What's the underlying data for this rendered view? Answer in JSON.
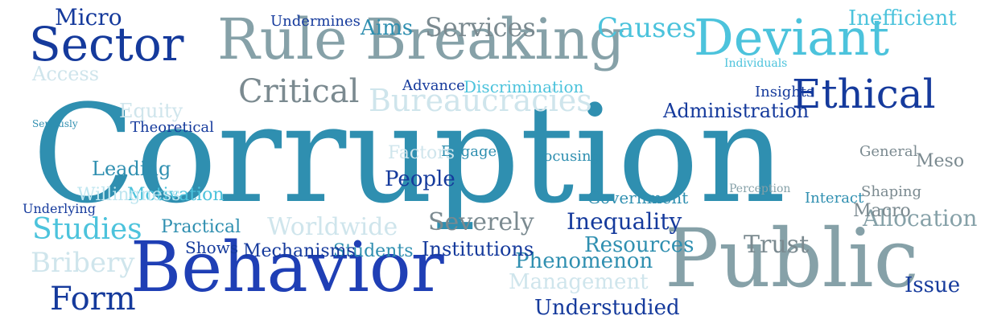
{
  "colors": {
    "background": "#ffffff",
    "palette": [
      "#2f8fb0",
      "#1f3fb5",
      "#86a1a8",
      "#4cc3dc",
      "#153a9c",
      "#cfe5ec",
      "#7b8a90",
      "#bfe6f0"
    ]
  },
  "words": [
    {
      "text": "Corruption",
      "color": "#2f8fb0",
      "tier": "xxl"
    },
    {
      "text": "Rule Breaking",
      "color": "#86a1a8",
      "tier": "xl"
    },
    {
      "text": "Behavior",
      "color": "#1f3fb5",
      "tier": "xl"
    },
    {
      "text": "Public",
      "color": "#86a1a8",
      "tier": "xl"
    },
    {
      "text": "Sector",
      "color": "#153a9c",
      "tier": "l"
    },
    {
      "text": "Deviant",
      "color": "#4cc3dc",
      "tier": "l"
    },
    {
      "text": "Ethical",
      "color": "#153a9c",
      "tier": "l"
    },
    {
      "text": "Micro",
      "color": "#153a9c",
      "tier": "m"
    },
    {
      "text": "Services",
      "color": "#7b8a90",
      "tier": "m"
    },
    {
      "text": "Causes",
      "color": "#4cc3dc",
      "tier": "m"
    },
    {
      "text": "Aims",
      "color": "#2f8fb0",
      "tier": "m"
    },
    {
      "text": "Critical",
      "color": "#7b8a90",
      "tier": "m"
    },
    {
      "text": "Bureaucracies",
      "color": "#cfe5ec",
      "tier": "m"
    },
    {
      "text": "Inefficient",
      "color": "#4cc3dc",
      "tier": "m"
    },
    {
      "text": "Administration",
      "color": "#153a9c",
      "tier": "m"
    },
    {
      "text": "Studies",
      "color": "#4cc3dc",
      "tier": "m"
    },
    {
      "text": "Bribery",
      "color": "#cfe5ec",
      "tier": "m"
    },
    {
      "text": "Worldwide",
      "color": "#cfe5ec",
      "tier": "m"
    },
    {
      "text": "Form",
      "color": "#153a9c",
      "tier": "m"
    },
    {
      "text": "Inequality",
      "color": "#153a9c",
      "tier": "m"
    },
    {
      "text": "Severely",
      "color": "#7b8a90",
      "tier": "m"
    },
    {
      "text": "Allocation",
      "color": "#86a1a8",
      "tier": "m"
    },
    {
      "text": "Trust",
      "color": "#7b8a90",
      "tier": "m"
    },
    {
      "text": "Phenomenon",
      "color": "#2f8fb0",
      "tier": "m"
    },
    {
      "text": "Resources",
      "color": "#2f8fb0",
      "tier": "m"
    },
    {
      "text": "Management",
      "color": "#cfe5ec",
      "tier": "m"
    },
    {
      "text": "Understudied",
      "color": "#153a9c",
      "tier": "m"
    },
    {
      "text": "Issue",
      "color": "#153a9c",
      "tier": "m"
    },
    {
      "text": "Access",
      "color": "#cfe5ec",
      "tier": "m"
    },
    {
      "text": "Equity",
      "color": "#cfe5ec",
      "tier": "m"
    },
    {
      "text": "Leading",
      "color": "#2f8fb0",
      "tier": "m"
    },
    {
      "text": "Institutions",
      "color": "#153a9c",
      "tier": "m"
    },
    {
      "text": "Students",
      "color": "#2f8fb0",
      "tier": "m"
    },
    {
      "text": "Mechanisms",
      "color": "#153a9c",
      "tier": "m"
    },
    {
      "text": "Shows",
      "color": "#153a9c",
      "tier": "m"
    },
    {
      "text": "Practical",
      "color": "#2f8fb0",
      "tier": "m"
    },
    {
      "text": "Discrimination",
      "color": "#4cc3dc",
      "tier": "m"
    },
    {
      "text": "Advance",
      "color": "#153a9c",
      "tier": "s"
    },
    {
      "text": "Insights",
      "color": "#153a9c",
      "tier": "s"
    },
    {
      "text": "People",
      "color": "#153a9c",
      "tier": "s"
    },
    {
      "text": "Meso",
      "color": "#7b8a90",
      "tier": "s"
    },
    {
      "text": "Macro",
      "color": "#7b8a90",
      "tier": "s"
    },
    {
      "text": "Engage",
      "color": "#2f8fb0",
      "tier": "s"
    },
    {
      "text": "Focusing",
      "color": "#2f8fb0",
      "tier": "s"
    },
    {
      "text": "Motivation",
      "color": "#4cc3dc",
      "tier": "s"
    },
    {
      "text": "Individuals",
      "color": "#4cc3dc",
      "tier": "s"
    },
    {
      "text": "Government",
      "color": "#2f8fb0",
      "tier": "s"
    },
    {
      "text": "Interact",
      "color": "#2f8fb0",
      "tier": "s"
    },
    {
      "text": "Factors",
      "color": "#cfe5ec",
      "tier": "s"
    },
    {
      "text": "Shaping",
      "color": "#7b8a90",
      "tier": "s"
    },
    {
      "text": "Underlying",
      "color": "#153a9c",
      "tier": "s"
    },
    {
      "text": "Willingness",
      "color": "#bfe6f0",
      "tier": "s"
    },
    {
      "text": "Theoretical",
      "color": "#153a9c",
      "tier": "s"
    },
    {
      "text": "General",
      "color": "#7b8a90",
      "tier": "s"
    },
    {
      "text": "Perception",
      "color": "#86a1a8",
      "tier": "s"
    },
    {
      "text": "Undermines",
      "color": "#153a9c",
      "tier": "s"
    },
    {
      "text": "Seriously",
      "color": "#2f8fb0",
      "tier": "s"
    }
  ]
}
